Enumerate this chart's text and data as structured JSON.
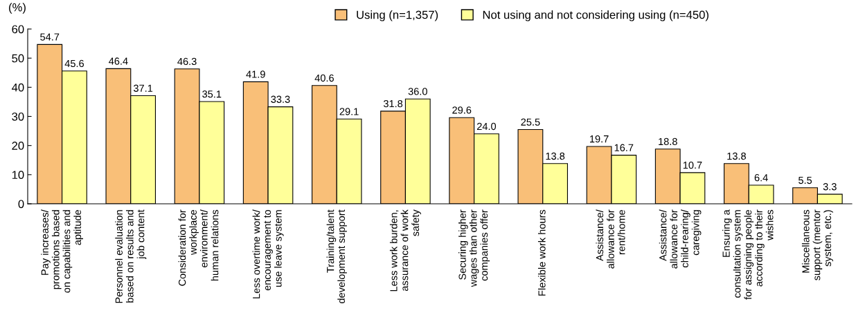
{
  "chart_data": {
    "type": "bar",
    "ylabel": "(%)",
    "categories": [
      "Pay increases/\npromotions based\non capabilities and\naptitude",
      "Personnel evaluation\nbased on results and\njob content",
      "Consideration for\nworkplace\nenvironment/\nhuman relations",
      "Less overtime work/\nencouragement to\nuse leave system",
      "Training/talent\ndevelopment support",
      "Less work burden,\nassurance of work\nsafety",
      "Securing higher\nwages than other\ncompanies offer",
      "Flexible work hours",
      "Assistance/\nallowance for\nrent/home",
      "Assistance/\nallowance for\nchild-rearing/\ncaregiving",
      "Ensuring a\nconsultation system\nfor assigning people\naccording to their\nwishes",
      "Miscellaneous\nsupport (mentor\nsystem, etc.)"
    ],
    "series": [
      {
        "name": "Using (n=1,357)",
        "color": "#f9bf78",
        "values": [
          54.7,
          46.4,
          46.3,
          41.9,
          40.6,
          31.8,
          29.6,
          25.5,
          19.7,
          18.8,
          13.8,
          5.5
        ],
        "value_labels": [
          "54.7",
          "46.4",
          "46.3",
          "41.9",
          "40.6",
          "31.8",
          "29.6",
          "25.5",
          "19.7",
          "18.8",
          "13.8",
          "5.5"
        ]
      },
      {
        "name": "Not using and not considering using (n=450)",
        "color": "#ffff99",
        "values": [
          45.6,
          37.1,
          35.1,
          33.3,
          29.1,
          36.0,
          24.0,
          13.8,
          16.7,
          10.7,
          6.4,
          3.3
        ],
        "value_labels": [
          "45.6",
          "37.1",
          "35.1",
          "33.3",
          "29.1",
          "36.0",
          "24.0",
          "13.8",
          "16.7",
          "10.7",
          "6.4",
          "3.3"
        ]
      }
    ],
    "ylim": [
      0,
      60
    ],
    "yticks": [
      0,
      10,
      20,
      30,
      40,
      50,
      60
    ],
    "legend": "top",
    "grid": false
  }
}
